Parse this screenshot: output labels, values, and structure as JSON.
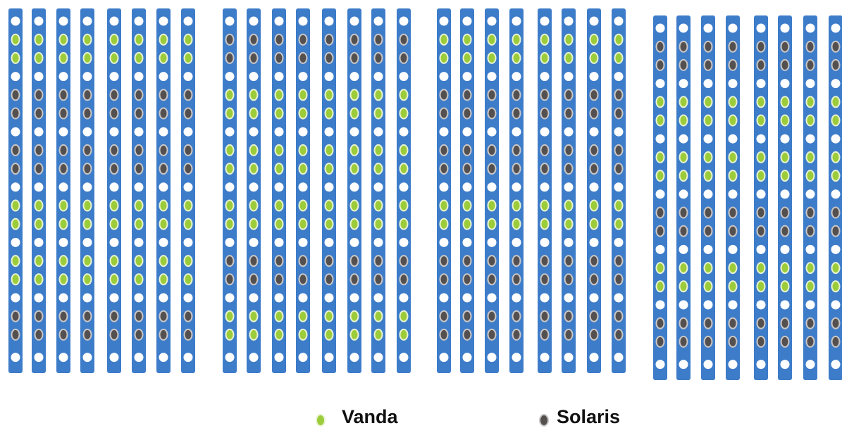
{
  "legend": {
    "items": [
      {
        "label": "Vanda"
      },
      {
        "label": "Solaris"
      }
    ]
  }
}
